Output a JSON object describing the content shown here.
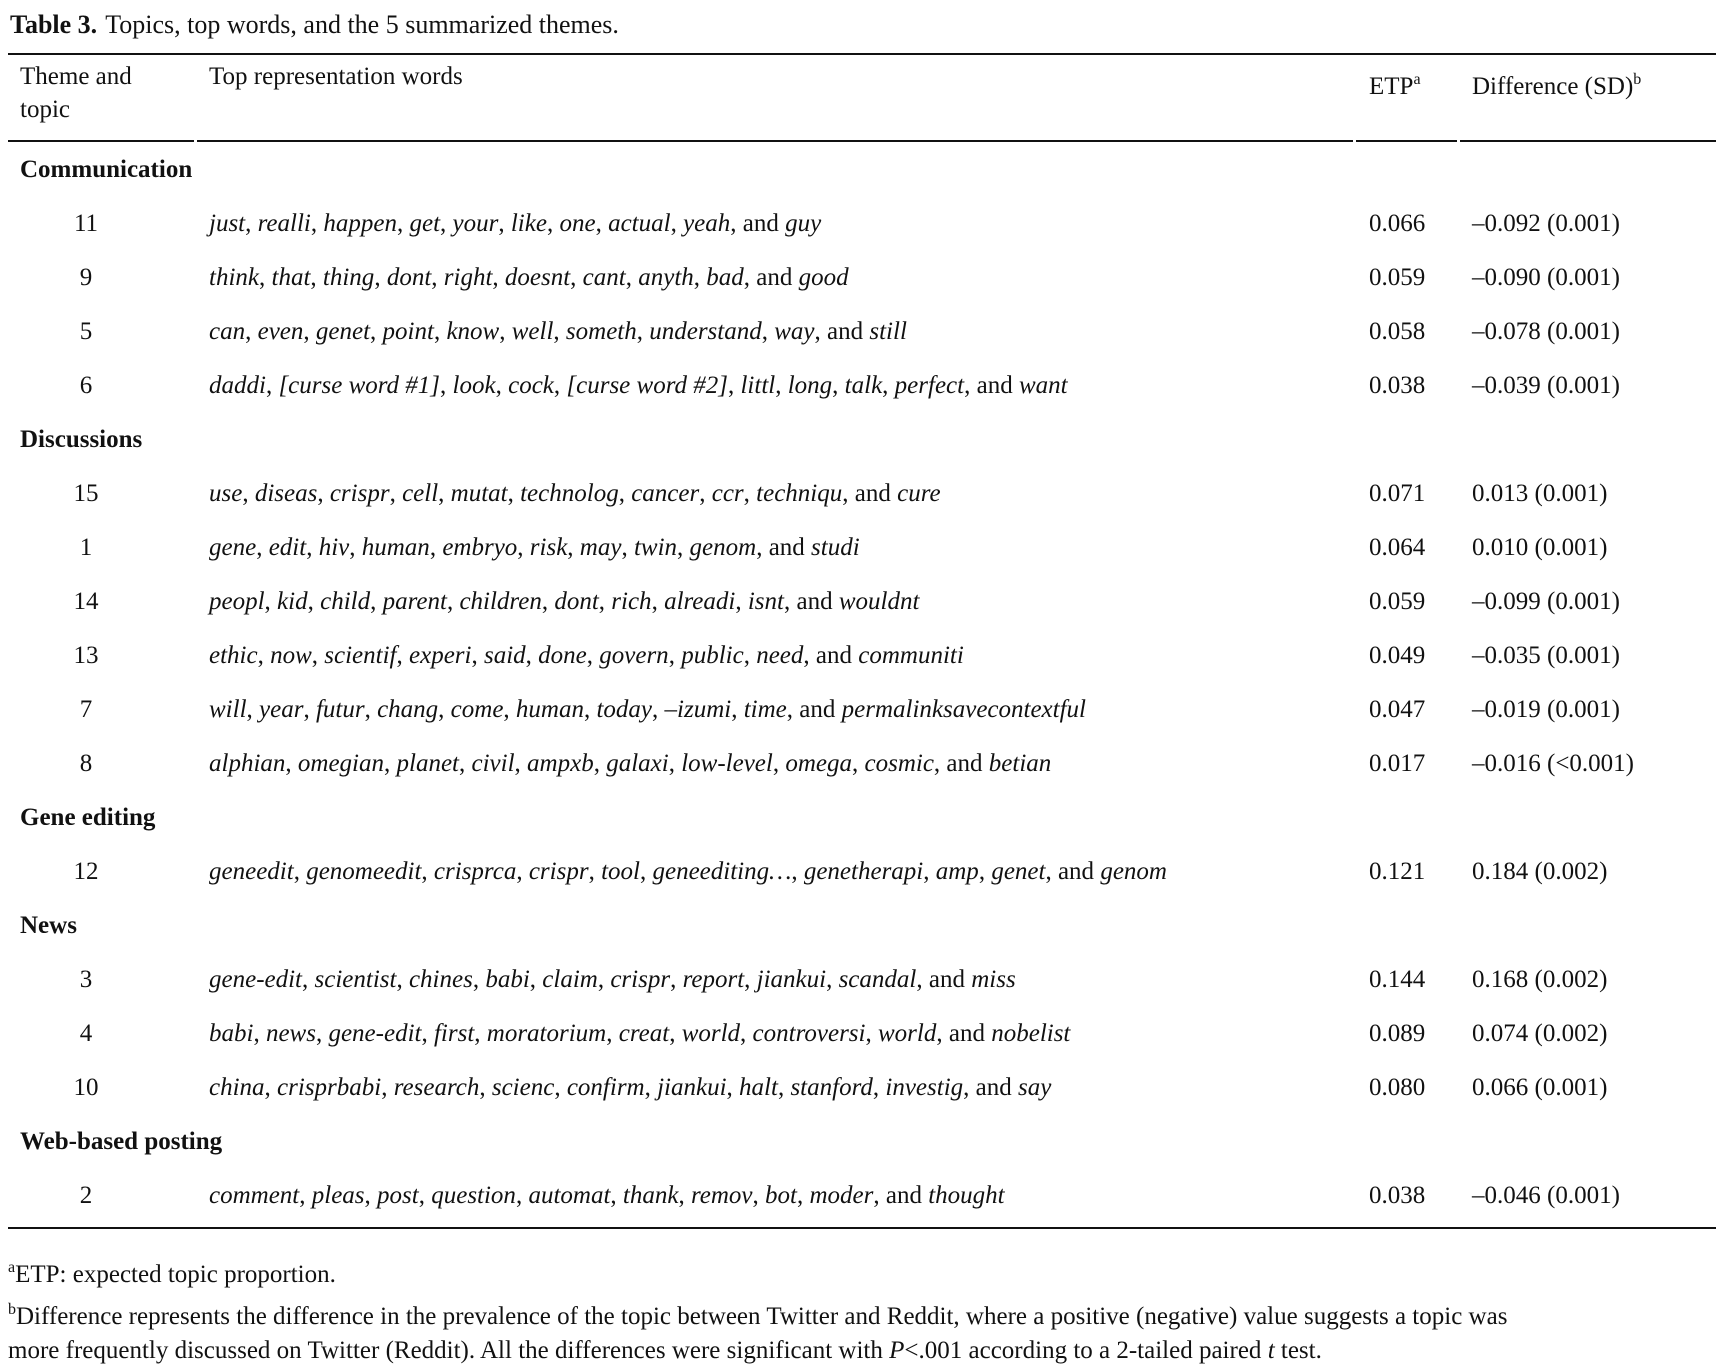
{
  "caption": {
    "label": "Table 3.",
    "text": "Topics, top words, and the 5 summarized themes."
  },
  "headers": {
    "theme_topic_line1": "Theme and",
    "theme_topic_line2": "topic",
    "words": "Top representation words",
    "etp": "ETP",
    "etp_sup": "a",
    "diff": "Difference (SD)",
    "diff_sup": "b"
  },
  "conjunction": "and",
  "groups": [
    {
      "theme": "Communication",
      "rows": [
        {
          "topic": "11",
          "words": [
            "just",
            "realli",
            "happen",
            "get",
            "your",
            "like",
            "one",
            "actual",
            "yeah"
          ],
          "last": "guy",
          "etp": "0.066",
          "diff": "–0.092 (0.001)"
        },
        {
          "topic": "9",
          "words": [
            "think",
            "that",
            "thing",
            "dont",
            "right",
            "doesnt",
            "cant",
            "anyth",
            "bad"
          ],
          "last": "good",
          "etp": "0.059",
          "diff": "–0.090 (0.001)"
        },
        {
          "topic": "5",
          "words": [
            "can",
            "even",
            "genet",
            "point",
            "know",
            "well",
            "someth",
            "understand",
            "way"
          ],
          "last": "still",
          "etp": "0.058",
          "diff": "–0.078 (0.001)"
        },
        {
          "topic": "6",
          "words": [
            "daddi",
            "[curse word #1]",
            "look",
            "cock",
            "[curse word #2]",
            "littl",
            "long",
            "talk",
            "perfect"
          ],
          "last": "want",
          "etp": "0.038",
          "diff": "–0.039 (0.001)"
        }
      ]
    },
    {
      "theme": "Discussions",
      "rows": [
        {
          "topic": "15",
          "words": [
            "use",
            "diseas",
            "crispr",
            "cell",
            "mutat",
            "technolog",
            "cancer",
            "ccr",
            "techniqu"
          ],
          "last": "cure",
          "etp": "0.071",
          "diff": "0.013 (0.001)"
        },
        {
          "topic": "1",
          "words": [
            "gene",
            "edit",
            "hiv",
            "human",
            "embryo",
            "risk",
            "may",
            "twin",
            "genom"
          ],
          "last": "studi",
          "etp": "0.064",
          "diff": "0.010 (0.001)"
        },
        {
          "topic": "14",
          "words": [
            "peopl",
            "kid",
            "child",
            "parent",
            "children",
            "dont",
            "rich",
            "alreadi",
            "isnt"
          ],
          "last": "wouldnt",
          "etp": "0.059",
          "diff": "–0.099 (0.001)"
        },
        {
          "topic": "13",
          "words": [
            "ethic",
            "now",
            "scientif",
            "experi",
            "said",
            "done",
            "govern",
            "public",
            "need"
          ],
          "last": "communiti",
          "etp": "0.049",
          "diff": "–0.035 (0.001)"
        },
        {
          "topic": "7",
          "words": [
            "will",
            "year",
            "futur",
            "chang",
            "come",
            "human",
            "today",
            "–izumi",
            "time"
          ],
          "last": "permalinksavecontextful",
          "etp": "0.047",
          "diff": "–0.019 (0.001)"
        },
        {
          "topic": "8",
          "words": [
            "alphian",
            "omegian",
            "planet",
            "civil",
            "ampxb",
            "galaxi",
            "low-level",
            "omega",
            "cosmic"
          ],
          "last": "betian",
          "etp": "0.017",
          "diff": "–0.016 (<0.001)"
        }
      ]
    },
    {
      "theme": "Gene editing",
      "rows": [
        {
          "topic": "12",
          "words": [
            "geneedit",
            "genomeedit",
            "crisprca",
            "crispr",
            "tool",
            "geneediting…",
            "genetherapi",
            "amp",
            "genet"
          ],
          "last": "genom",
          "etp": "0.121",
          "diff": "0.184 (0.002)"
        }
      ]
    },
    {
      "theme": "News",
      "rows": [
        {
          "topic": "3",
          "words": [
            "gene-edit",
            "scientist",
            "chines",
            "babi",
            "claim",
            "crispr",
            "report",
            "jiankui",
            "scandal"
          ],
          "last": "miss",
          "etp": "0.144",
          "diff": "0.168 (0.002)"
        },
        {
          "topic": "4",
          "words": [
            "babi",
            "news",
            "gene-edit",
            "first",
            "moratorium",
            "creat",
            "world",
            "controversi",
            "world"
          ],
          "last": "nobelist",
          "etp": "0.089",
          "diff": "0.074 (0.002)"
        },
        {
          "topic": "10",
          "words": [
            "china",
            "crisprbabi",
            "research",
            "scienc",
            "confirm",
            "jiankui",
            "halt",
            "stanford",
            "investig"
          ],
          "last": "say",
          "etp": "0.080",
          "diff": "0.066 (0.001)"
        }
      ]
    },
    {
      "theme": "Web-based posting",
      "rows": [
        {
          "topic": "2",
          "words": [
            "comment",
            "pleas",
            "post",
            "question",
            "automat",
            "thank",
            "remov",
            "bot",
            "moder"
          ],
          "last": "thought",
          "etp": "0.038",
          "diff": "–0.046 (0.001)"
        }
      ]
    }
  ],
  "footnotes": {
    "a_mark": "a",
    "a_text": "ETP: expected topic proportion.",
    "b_mark": "b",
    "b_line1": "Difference represents the difference in the prevalence of the topic between Twitter and Reddit, where a positive (negative) value suggests a topic was",
    "b_line2_pre": "more frequently discussed on Twitter (Reddit). All the differences were significant with ",
    "b_line2_p": "P",
    "b_line2_mid": "<.001 according to a 2-tailed paired ",
    "b_line2_t": "t",
    "b_line2_post": " test."
  }
}
